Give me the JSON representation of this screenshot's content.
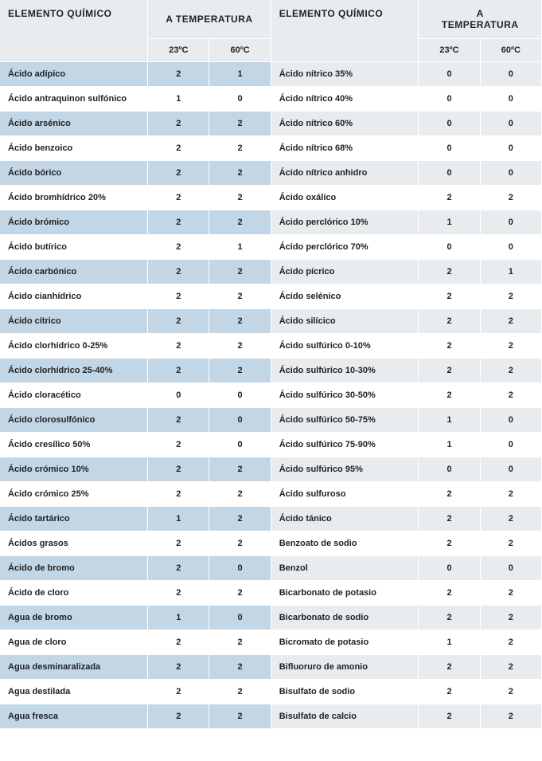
{
  "header": {
    "element_label": "ELEMENTO QUÍMICO",
    "temp_label": "A TEMPERATURA",
    "temp_label_wrapped_1": "A",
    "temp_label_wrapped_2": "TEMPERATURA",
    "t23": "23ºC",
    "t60": "60ºC"
  },
  "colors": {
    "odd_left_bg": "#c3d6e6",
    "odd_right_bg": "#e9ecef",
    "even_bg": "#ffffff",
    "header_bg": "#e9ecef",
    "text": "#222222"
  },
  "rows": [
    {
      "ln": "Ácido adípico",
      "l23": "2",
      "l60": "1",
      "rn": "Ácido nítrico 35%",
      "r23": "0",
      "r60": "0"
    },
    {
      "ln": "Ácido antraquinon sulfónico",
      "l23": "1",
      "l60": "0",
      "rn": "Ácido nítrico 40%",
      "r23": "0",
      "r60": "0"
    },
    {
      "ln": "Ácido arsénico",
      "l23": "2",
      "l60": "2",
      "rn": "Ácido nítrico 60%",
      "r23": "0",
      "r60": "0"
    },
    {
      "ln": "Ácido benzoico",
      "l23": "2",
      "l60": "2",
      "rn": "Ácido nítrico 68%",
      "r23": "0",
      "r60": "0"
    },
    {
      "ln": "Ácido bórico",
      "l23": "2",
      "l60": "2",
      "rn": "Ácido nítrico anhidro",
      "r23": "0",
      "r60": "0"
    },
    {
      "ln": "Ácido bromhídrico 20%",
      "l23": "2",
      "l60": "2",
      "rn": "Ácido oxálico",
      "r23": "2",
      "r60": "2"
    },
    {
      "ln": "Ácido brómico",
      "l23": "2",
      "l60": "2",
      "rn": "Ácido perclórico 10%",
      "r23": "1",
      "r60": "0"
    },
    {
      "ln": "Ácido butírico",
      "l23": "2",
      "l60": "1",
      "rn": "Ácido perclórico 70%",
      "r23": "0",
      "r60": "0"
    },
    {
      "ln": "Ácido carbónico",
      "l23": "2",
      "l60": "2",
      "rn": "Ácido pícrico",
      "r23": "2",
      "r60": "1"
    },
    {
      "ln": "Ácido cianhídrico",
      "l23": "2",
      "l60": "2",
      "rn": "Ácido selénico",
      "r23": "2",
      "r60": "2"
    },
    {
      "ln": "Ácido cítrico",
      "l23": "2",
      "l60": "2",
      "rn": "Ácido silícico",
      "r23": "2",
      "r60": "2"
    },
    {
      "ln": "Ácido clorhídrico 0-25%",
      "l23": "2",
      "l60": "2",
      "rn": "Ácido sulfúrico 0-10%",
      "r23": "2",
      "r60": "2"
    },
    {
      "ln": "Ácido clorhídrico 25-40%",
      "l23": "2",
      "l60": "2",
      "rn": "Ácido sulfúrico 10-30%",
      "r23": "2",
      "r60": "2"
    },
    {
      "ln": "Ácido cloracético",
      "l23": "0",
      "l60": "0",
      "rn": "Ácido sulfúrico 30-50%",
      "r23": "2",
      "r60": "2"
    },
    {
      "ln": "Ácido clorosulfónico",
      "l23": "2",
      "l60": "0",
      "rn": "Ácido sulfúrico 50-75%",
      "r23": "1",
      "r60": "0"
    },
    {
      "ln": "Ácido cresílico 50%",
      "l23": "2",
      "l60": "0",
      "rn": "Ácido sulfúrico 75-90%",
      "r23": "1",
      "r60": "0"
    },
    {
      "ln": "Ácido crómico 10%",
      "l23": "2",
      "l60": "2",
      "rn": "Ácido sulfúrico 95%",
      "r23": "0",
      "r60": "0"
    },
    {
      "ln": "Ácido crómico 25%",
      "l23": "2",
      "l60": "2",
      "rn": "Ácido sulfuroso",
      "r23": "2",
      "r60": "2"
    },
    {
      "ln": "Ácido tartárico",
      "l23": "1",
      "l60": "2",
      "rn": "Ácido tánico",
      "r23": "2",
      "r60": "2"
    },
    {
      "ln": "Ácidos grasos",
      "l23": "2",
      "l60": "2",
      "rn": "Benzoato de sodio",
      "r23": "2",
      "r60": "2"
    },
    {
      "ln": "Ácido de bromo",
      "l23": "2",
      "l60": "0",
      "rn": "Benzol",
      "r23": "0",
      "r60": "0"
    },
    {
      "ln": "Ácido de cloro",
      "l23": "2",
      "l60": "2",
      "rn": "Bicarbonato de potasio",
      "r23": "2",
      "r60": "2"
    },
    {
      "ln": "Agua de bromo",
      "l23": "1",
      "l60": "0",
      "rn": "Bicarbonato de sodio",
      "r23": "2",
      "r60": "2"
    },
    {
      "ln": "Agua de cloro",
      "l23": "2",
      "l60": "2",
      "rn": "Bicromato de potasio",
      "r23": "1",
      "r60": "2"
    },
    {
      "ln": "Agua desminaralizada",
      "l23": "2",
      "l60": "2",
      "rn": "Bifluoruro de amonio",
      "r23": "2",
      "r60": "2"
    },
    {
      "ln": "Agua destilada",
      "l23": "2",
      "l60": "2",
      "rn": "Bisulfato de sodio",
      "r23": "2",
      "r60": "2"
    },
    {
      "ln": "Agua fresca",
      "l23": "2",
      "l60": "2",
      "rn": "Bisulfato de calcio",
      "r23": "2",
      "r60": "2"
    }
  ]
}
